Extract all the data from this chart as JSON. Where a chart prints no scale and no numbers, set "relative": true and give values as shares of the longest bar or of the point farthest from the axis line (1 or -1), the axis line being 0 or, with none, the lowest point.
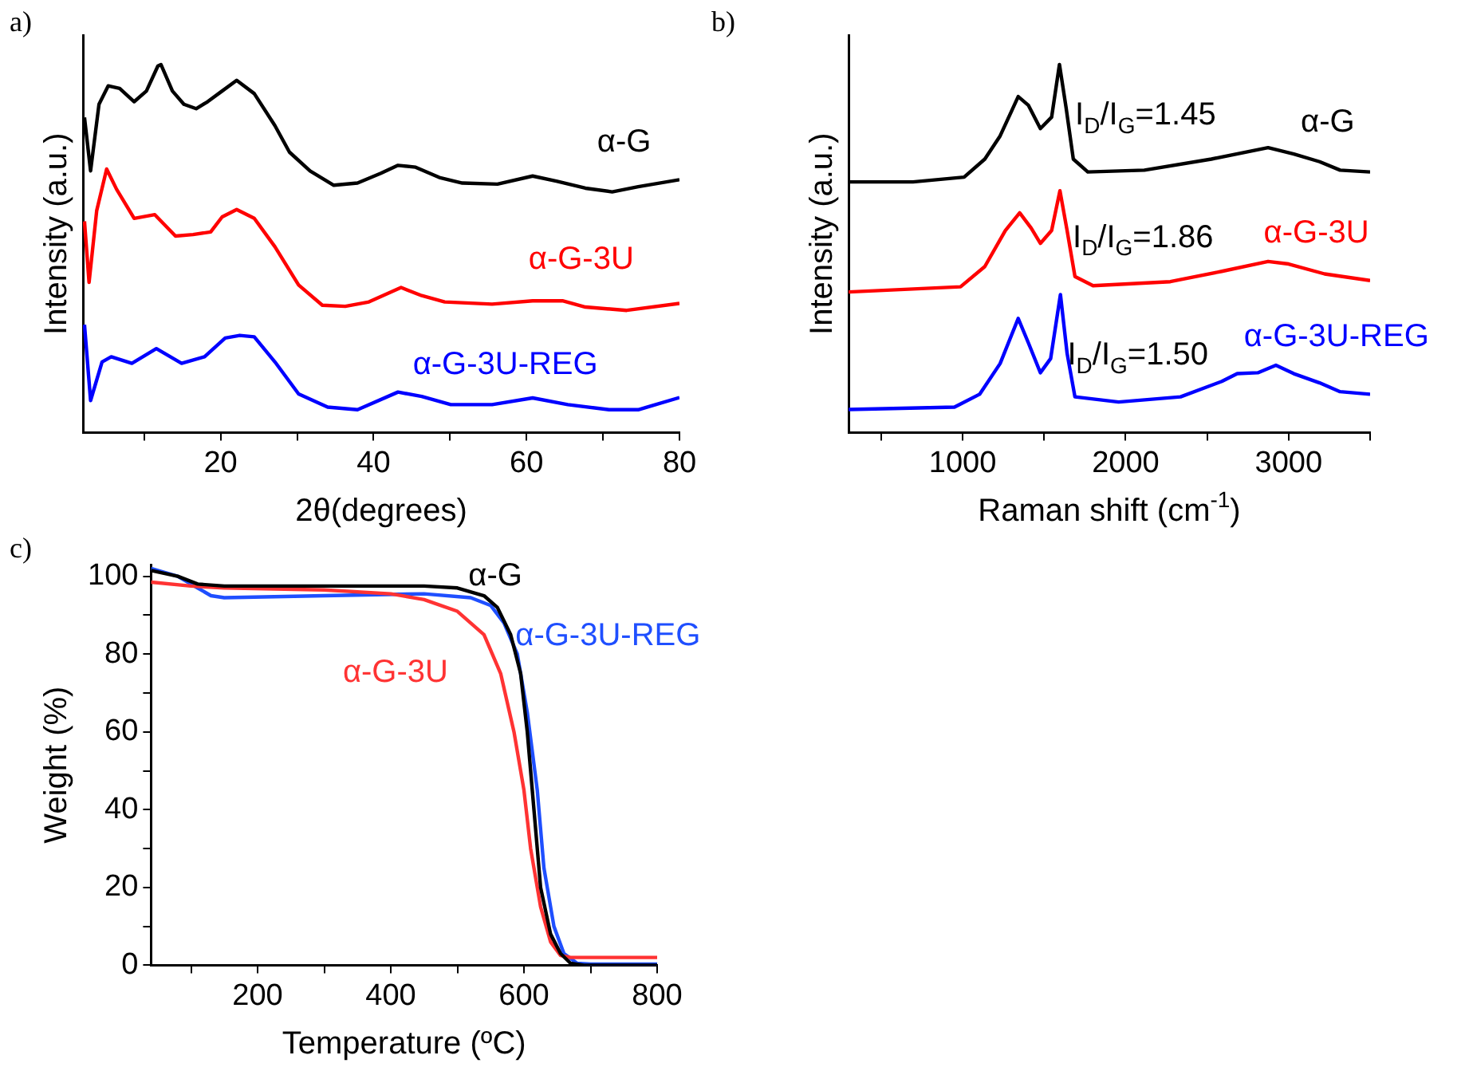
{
  "chart_data": [
    {
      "type": "line",
      "xlabel": "2θ(degrees)",
      "ylabel": "Intensity (a.u.)",
      "relative": true,
      "legend": false,
      "grid": false,
      "marker": "none",
      "line_style": "solid",
      "tick_labels": "x",
      "xlim": [
        2,
        80
      ],
      "xticks": [
        {
          "value": 10,
          "label": null
        },
        20,
        {
          "value": 30,
          "label": null
        },
        40,
        {
          "value": 50,
          "label": null
        },
        60,
        {
          "value": 70,
          "label": null
        },
        80
      ],
      "annotations": [
        "a)"
      ],
      "series": [
        {
          "name": "α-G",
          "color": "#000000",
          "x": [
            2.2,
            3.0,
            4.1,
            5.3,
            6.8,
            8.7,
            10.3,
            11.8,
            12.2,
            13.7,
            15.2,
            16.8,
            18.3,
            20.2,
            22.1,
            24.4,
            27.1,
            29.0,
            31.7,
            34.8,
            37.9,
            40.9,
            43.2,
            45.5,
            48.6,
            51.6,
            56.2,
            60.8,
            63.9,
            67.7,
            71.2,
            74.6,
            80
          ],
          "values": [
            0.856,
            0.711,
            0.892,
            0.942,
            0.935,
            0.899,
            0.928,
            0.996,
            1.0,
            0.928,
            0.892,
            0.88,
            0.899,
            0.928,
            0.957,
            0.921,
            0.834,
            0.762,
            0.711,
            0.672,
            0.678,
            0.704,
            0.726,
            0.721,
            0.693,
            0.678,
            0.675,
            0.697,
            0.683,
            0.664,
            0.654,
            0.668,
            0.687
          ]
        },
        {
          "name": "α-G-3U",
          "color": "#ff0000",
          "x": [
            2.2,
            2.8,
            3.8,
            5.1,
            6.4,
            8.7,
            11.4,
            14.1,
            16.4,
            18.7,
            20.2,
            22.1,
            24.4,
            27.1,
            30.2,
            33.3,
            36.3,
            39.4,
            43.6,
            46.3,
            49.3,
            55.5,
            60.8,
            64.7,
            67.7,
            73.1,
            80
          ],
          "values": [
            0.574,
            0.408,
            0.603,
            0.716,
            0.661,
            0.582,
            0.592,
            0.534,
            0.538,
            0.545,
            0.586,
            0.606,
            0.582,
            0.505,
            0.401,
            0.346,
            0.343,
            0.355,
            0.394,
            0.372,
            0.355,
            0.349,
            0.358,
            0.358,
            0.341,
            0.332,
            0.351
          ]
        },
        {
          "name": "α-G-3U-REG",
          "color": "#0000ff",
          "x": [
            2.2,
            3.0,
            4.5,
            5.7,
            8.4,
            11.6,
            14.9,
            17.9,
            20.6,
            22.5,
            24.4,
            27.1,
            30.2,
            34.0,
            37.9,
            43.2,
            46.3,
            50.1,
            55.5,
            60.8,
            65.4,
            70.8,
            74.6,
            80
          ],
          "values": [
            0.293,
            0.087,
            0.192,
            0.206,
            0.188,
            0.228,
            0.188,
            0.206,
            0.257,
            0.264,
            0.26,
            0.192,
            0.105,
            0.069,
            0.062,
            0.11,
            0.098,
            0.076,
            0.076,
            0.094,
            0.076,
            0.062,
            0.062,
            0.095
          ]
        }
      ]
    },
    {
      "type": "line",
      "xlabel": "Raman shift (cm$^{-1}$)",
      "ylabel": "Intensity (a.u.)",
      "relative": true,
      "legend": false,
      "grid": false,
      "marker": "none",
      "line_style": "solid",
      "tick_labels": "x",
      "xlim": [
        300,
        3500
      ],
      "xticks": [
        {
          "value": 500,
          "label": null
        },
        1000,
        {
          "value": 1500,
          "label": null
        },
        2000,
        {
          "value": 2500,
          "label": null
        },
        3000,
        {
          "value": 3500,
          "label": null
        }
      ],
      "annotations": [
        "b)",
        {
          "text": "I$_{D}$/I$_{G}$=1.45",
          "x": 1690,
          "y": 0.861
        },
        {
          "text": "I$_{D}$/I$_{G}$=1.86",
          "x": 1675,
          "y": 0.528
        },
        {
          "text": "I$_{D}$/I$_{G}$=1.50",
          "x": 1643,
          "y": 0.208
        }
      ],
      "series": [
        {
          "name": "α-G",
          "color": "#000000",
          "x": [
            300,
            695,
            1009,
            1136,
            1230,
            1341,
            1404,
            1477,
            1546,
            1594,
            1635,
            1679,
            1768,
            2115,
            2526,
            2874,
            3032,
            3190,
            3316,
            3500
          ],
          "values": [
            0.681,
            0.681,
            0.694,
            0.743,
            0.806,
            0.913,
            0.889,
            0.826,
            0.857,
            1.0,
            0.882,
            0.743,
            0.708,
            0.713,
            0.743,
            0.774,
            0.757,
            0.736,
            0.713,
            0.708
          ]
        },
        {
          "name": "α-G-3U",
          "color": "#ff0000",
          "x": [
            300,
            987,
            1136,
            1262,
            1350,
            1420,
            1477,
            1546,
            1597,
            1641,
            1689,
            1800,
            2274,
            2590,
            2874,
            3000,
            3221,
            3500
          ],
          "values": [
            0.382,
            0.396,
            0.451,
            0.549,
            0.597,
            0.556,
            0.514,
            0.549,
            0.657,
            0.549,
            0.424,
            0.399,
            0.41,
            0.438,
            0.465,
            0.458,
            0.431,
            0.413
          ]
        },
        {
          "name": "α-G-3U-REG",
          "color": "#0000ff",
          "x": [
            300,
            950,
            1104,
            1230,
            1341,
            1404,
            1477,
            1540,
            1600,
            1641,
            1689,
            1957,
            2337,
            2590,
            2685,
            2811,
            2922,
            3032,
            3190,
            3316,
            3500
          ],
          "values": [
            0.0625,
            0.069,
            0.104,
            0.1875,
            0.31,
            0.243,
            0.1625,
            0.201,
            0.375,
            0.215,
            0.097,
            0.083,
            0.097,
            0.139,
            0.16,
            0.1625,
            0.183,
            0.16,
            0.135,
            0.111,
            0.104
          ]
        }
      ]
    },
    {
      "type": "line",
      "xlabel": "Temperature (ºC)",
      "ylabel": "Weight (%)",
      "legend": false,
      "grid": false,
      "marker": "none",
      "line_style": "solid",
      "xlim": [
        40,
        800
      ],
      "xticks": [
        {
          "value": 100,
          "label": null
        },
        200,
        {
          "value": 300,
          "label": null
        },
        400,
        {
          "value": 500,
          "label": null
        },
        600,
        {
          "value": 700,
          "label": null
        },
        800
      ],
      "ylim": [
        0,
        103
      ],
      "yticks": [
        0,
        {
          "value": 10,
          "label": null
        },
        20,
        {
          "value": 30,
          "label": null
        },
        40,
        {
          "value": 50,
          "label": null
        },
        60,
        {
          "value": 70,
          "label": null
        },
        80,
        {
          "value": 90,
          "label": null
        },
        100
      ],
      "annotations": [
        "c)"
      ],
      "series": [
        {
          "name": "α-G",
          "color": "#000000",
          "x": [
            40,
            80,
            110,
            150,
            300,
            450,
            500,
            540,
            560,
            580,
            595,
            605,
            615,
            625,
            640,
            655,
            670,
            690,
            800
          ],
          "values": [
            101.5,
            100,
            98,
            97.5,
            97.5,
            97.5,
            97,
            95,
            92,
            85,
            75,
            60,
            40,
            20,
            8,
            3,
            0.5,
            0,
            0
          ]
        },
        {
          "name": "α-G-3U",
          "color": "#ff3333",
          "x": [
            40,
            100,
            150,
            300,
            400,
            450,
            500,
            540,
            565,
            585,
            600,
            610,
            625,
            640,
            655,
            670,
            800
          ],
          "values": [
            98.5,
            97.5,
            97,
            96.5,
            95.5,
            94,
            91,
            85,
            75,
            60,
            45,
            30,
            15,
            6,
            2.5,
            2,
            2
          ]
        },
        {
          "name": "α-G-3U-REG",
          "color": "#1f4fff",
          "x": [
            40,
            80,
            110,
            130,
            150,
            300,
            450,
            520,
            550,
            570,
            590,
            605,
            620,
            630,
            645,
            660,
            680,
            700,
            800
          ],
          "values": [
            102,
            100,
            97,
            95,
            94.5,
            95,
            95.5,
            94.5,
            92.5,
            88,
            80,
            65,
            45,
            25,
            10,
            3,
            0.5,
            0.3,
            0.3
          ]
        }
      ]
    }
  ]
}
